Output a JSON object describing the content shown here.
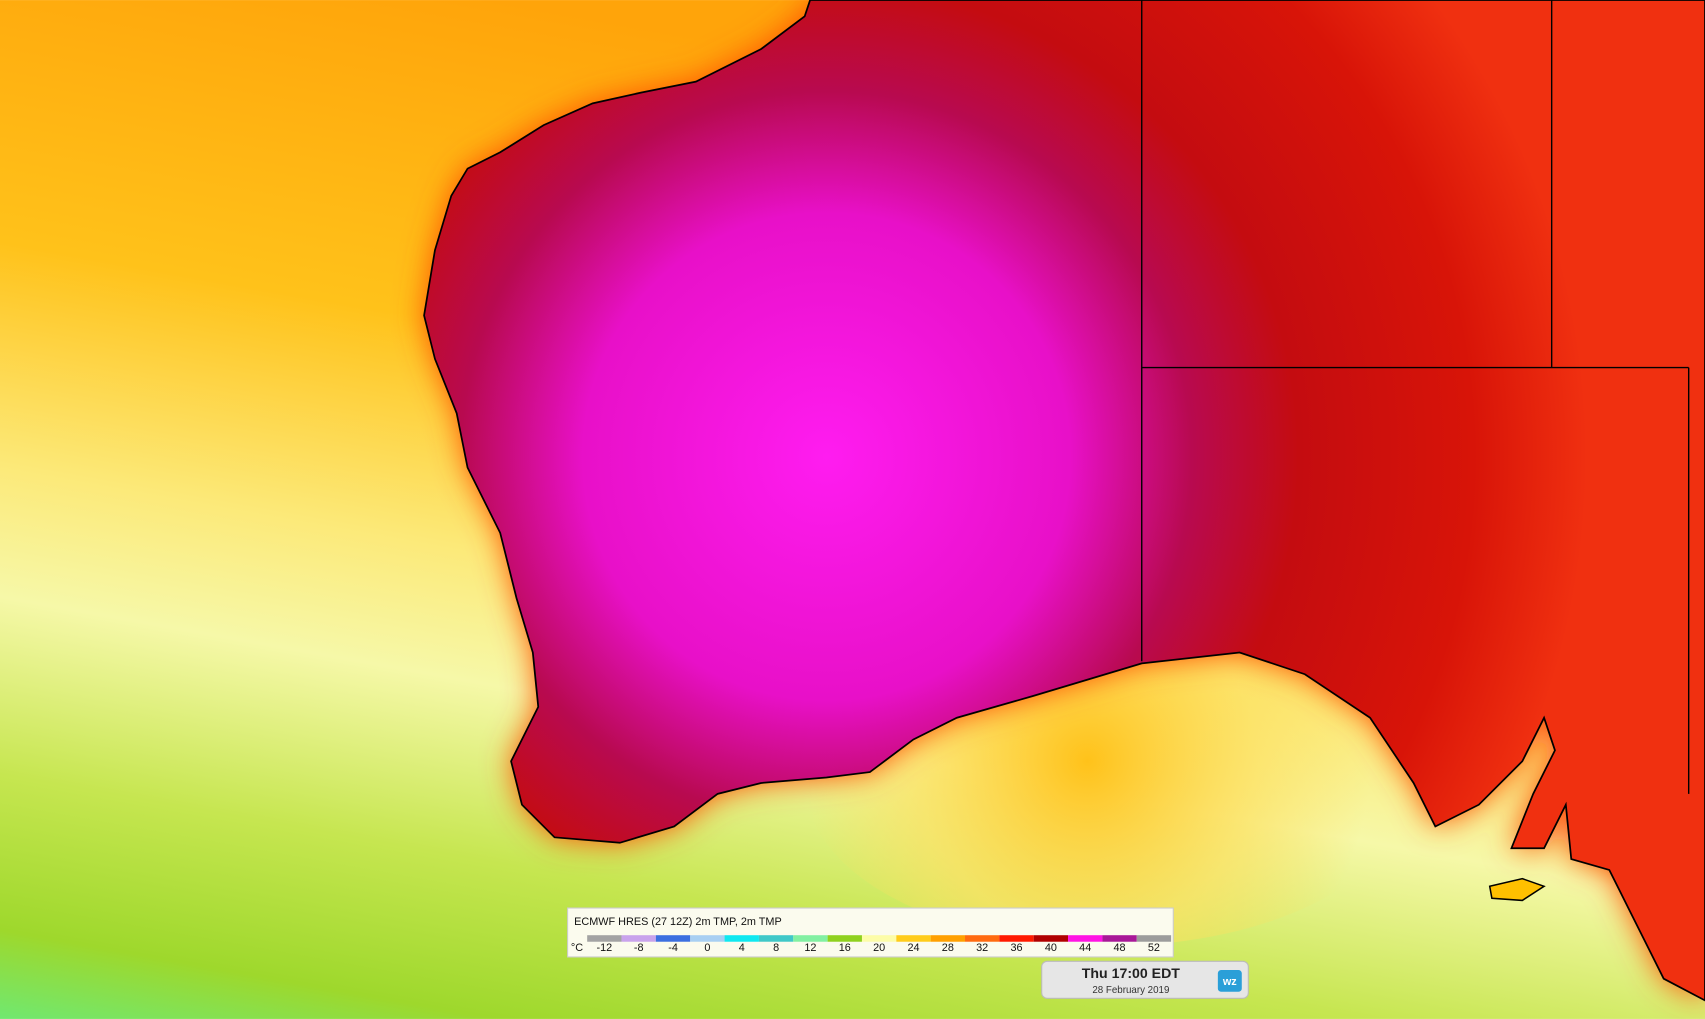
{
  "legend": {
    "title": "ECMWF HRES (27 12Z) 2m TMP, 2m TMP",
    "unit": "°C",
    "stops": [
      {
        "value": -12,
        "color": "#a3a3a3"
      },
      {
        "value": -8,
        "color": "#c9a3ec"
      },
      {
        "value": -4,
        "color": "#3c6fe0"
      },
      {
        "value": 0,
        "color": "#a8cff2"
      },
      {
        "value": 4,
        "color": "#10e8f0"
      },
      {
        "value": 8,
        "color": "#40c8c8"
      },
      {
        "value": 12,
        "color": "#82f0a2"
      },
      {
        "value": 16,
        "color": "#8fd11e"
      },
      {
        "value": 20,
        "color": "#fdfda8"
      },
      {
        "value": 24,
        "color": "#ffcc1a"
      },
      {
        "value": 28,
        "color": "#ffa000"
      },
      {
        "value": 32,
        "color": "#ff6a10"
      },
      {
        "value": 36,
        "color": "#ff1a00"
      },
      {
        "value": 40,
        "color": "#b00000"
      },
      {
        "value": 44,
        "color": "#ff14e4"
      },
      {
        "value": 48,
        "color": "#a81898"
      },
      {
        "value": 52,
        "color": "#9c9c9c"
      }
    ]
  },
  "timestamp": {
    "time": "Thu 17:00 EDT",
    "date": "28 February 2019"
  },
  "logo": "wz"
}
